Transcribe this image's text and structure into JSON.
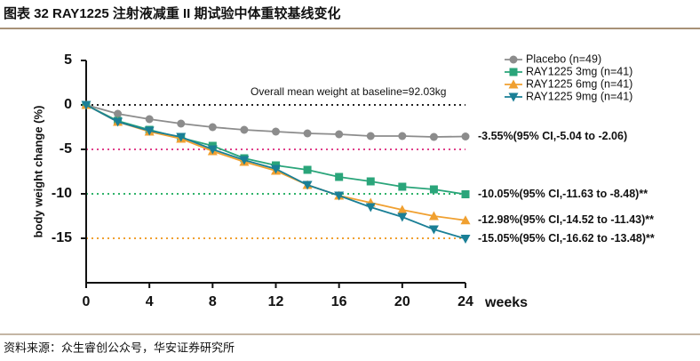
{
  "header": {
    "title": "图表 32 RAY1225 注射液减重 II 期试验中体重较基线变化"
  },
  "chart_data": {
    "type": "line",
    "x": [
      0,
      2,
      4,
      6,
      8,
      10,
      12,
      14,
      16,
      18,
      20,
      22,
      24
    ],
    "xlim": [
      0,
      24
    ],
    "xticks": [
      0,
      4,
      8,
      12,
      16,
      20,
      24
    ],
    "ylim": [
      -20,
      5
    ],
    "yticks": [
      -15,
      -10,
      -5,
      0,
      5
    ],
    "x_label": "weeks",
    "y_label": "body weight change (%)",
    "annotation": "Overall mean weight at baseline=92.03kg",
    "legend": "upper right",
    "ref_lines": [
      {
        "y": 0,
        "color": "#222222"
      },
      {
        "y": -5,
        "color": "#e0408a"
      },
      {
        "y": -10,
        "color": "#2fb36a"
      },
      {
        "y": -15,
        "color": "#f0a030"
      }
    ],
    "series": [
      {
        "name": "Placebo (n=49)",
        "color": "#8c8c8c",
        "marker": "circle",
        "end_label": "-3.55%(95% CI,-5.04 to -2.06)",
        "values": [
          0,
          -1.0,
          -1.6,
          -2.1,
          -2.5,
          -2.8,
          -3.0,
          -3.2,
          -3.3,
          -3.5,
          -3.5,
          -3.6,
          -3.55
        ]
      },
      {
        "name": "RAY1225 3mg (n=41)",
        "color": "#2aa57a",
        "marker": "square",
        "end_label": "-10.05%(95% CI,-11.63 to -8.48)**",
        "values": [
          0,
          -1.8,
          -2.8,
          -3.7,
          -4.6,
          -6.0,
          -6.8,
          -7.3,
          -8.1,
          -8.6,
          -9.2,
          -9.5,
          -10.05
        ]
      },
      {
        "name": "RAY1225 6mg (n=41)",
        "color": "#f0a030",
        "marker": "triangle-up",
        "end_label": "-12.98%(95% CI,-14.52 to -11.43)**",
        "values": [
          0,
          -1.9,
          -3.0,
          -3.8,
          -5.2,
          -6.4,
          -7.4,
          -9.0,
          -10.2,
          -11.0,
          -11.8,
          -12.5,
          -12.98
        ]
      },
      {
        "name": "RAY1225 9mg (n=41)",
        "color": "#1a7f96",
        "marker": "triangle-down",
        "end_label": "-15.05%(95% CI,-16.62 to -13.48)**",
        "values": [
          0,
          -1.9,
          -2.9,
          -3.6,
          -5.0,
          -6.2,
          -7.2,
          -9.0,
          -10.2,
          -11.5,
          -12.6,
          -14.0,
          -15.05
        ]
      }
    ]
  },
  "footer": {
    "source": "资料来源：众生睿创公众号，华安证券研究所"
  }
}
